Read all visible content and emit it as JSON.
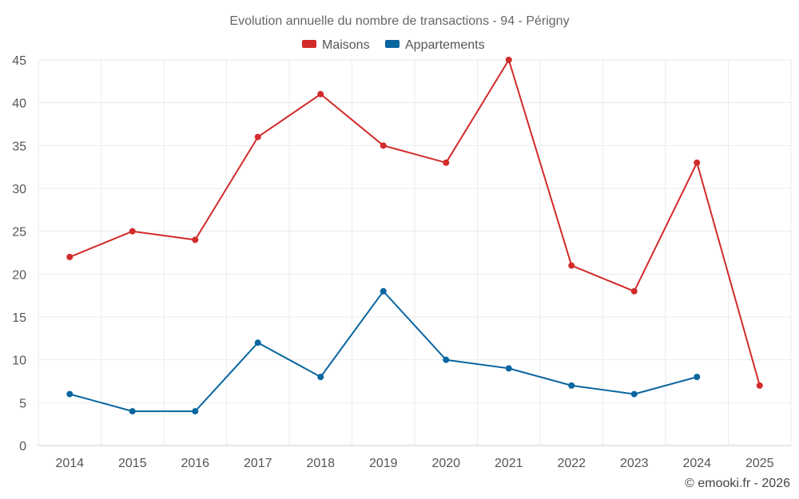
{
  "chart_data": {
    "type": "line",
    "title": "Evolution annuelle du nombre de transactions - 94 - Périgny",
    "categories": [
      "2014",
      "2015",
      "2016",
      "2017",
      "2018",
      "2019",
      "2020",
      "2021",
      "2022",
      "2023",
      "2024",
      "2025"
    ],
    "series": [
      {
        "name": "Maisons",
        "color": "#d32a2a",
        "values": [
          22,
          25,
          24,
          36,
          41,
          35,
          33,
          45,
          21,
          18,
          33,
          7
        ]
      },
      {
        "name": "Appartements",
        "color": "#0a66a0",
        "values": [
          6,
          4,
          4,
          12,
          8,
          18,
          10,
          9,
          7,
          6,
          8,
          null
        ]
      }
    ],
    "yticks": [
      0,
      5,
      10,
      15,
      20,
      25,
      30,
      35,
      40,
      45
    ],
    "ylim": [
      0,
      45
    ],
    "xlabel": "",
    "ylabel": "",
    "grid": true,
    "legend_position": "top-center"
  },
  "credit": "© emooki.fr - 2026"
}
